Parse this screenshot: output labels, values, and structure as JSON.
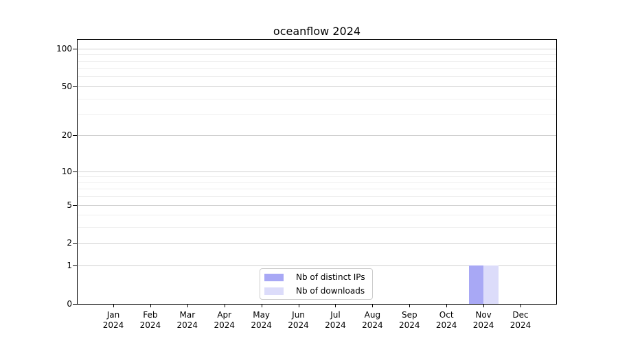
{
  "chart_data": {
    "type": "bar",
    "title": "oceanflow 2024",
    "x_months": [
      "Jan",
      "Feb",
      "Mar",
      "Apr",
      "May",
      "Jun",
      "Jul",
      "Aug",
      "Sep",
      "Oct",
      "Nov",
      "Dec"
    ],
    "x_year": "2024",
    "series": [
      {
        "name": "Nb of distinct IPs",
        "color": "#a8a8f5",
        "values": [
          0,
          0,
          0,
          0,
          0,
          0,
          0,
          0,
          0,
          0,
          1,
          0
        ]
      },
      {
        "name": "Nb of downloads",
        "color": "#dcdcfa",
        "values": [
          0,
          0,
          0,
          0,
          0,
          0,
          0,
          0,
          0,
          0,
          1,
          0
        ]
      }
    ],
    "yscale": "log1p",
    "ylim": [
      0,
      117.4
    ],
    "yticks_major": [
      0,
      1,
      2,
      5,
      10,
      20,
      50,
      100
    ],
    "yticks_minor": [
      3,
      4,
      6,
      7,
      8,
      9,
      30,
      40,
      60,
      70,
      80,
      90
    ],
    "grid": {
      "major_color": "#d0d0d0",
      "minor_color": "#efefef"
    },
    "legend_position": "lower center",
    "background_color": "#ffffff",
    "bar_value_nov_distinct_ips": 1,
    "bar_value_nov_downloads": 1
  }
}
